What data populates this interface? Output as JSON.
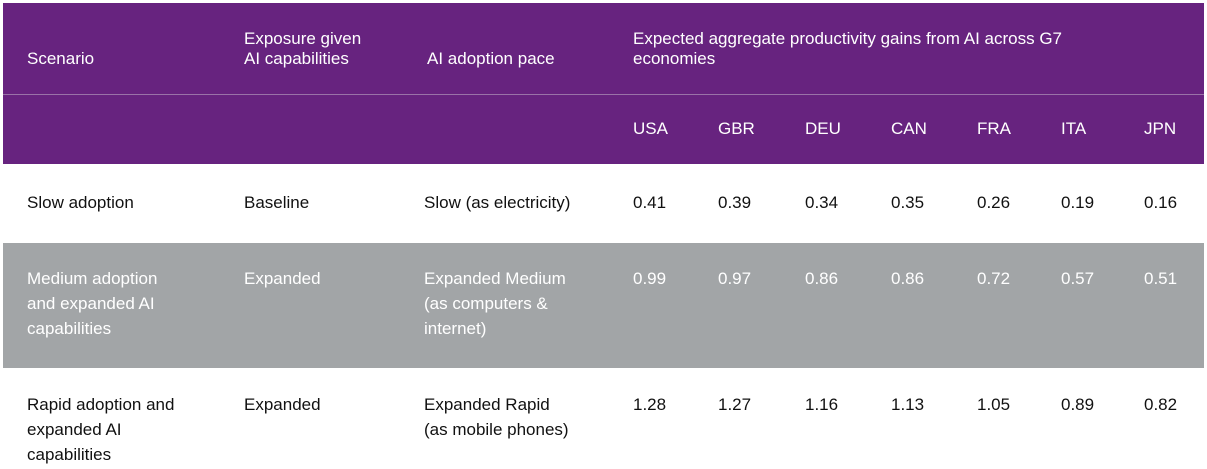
{
  "header": {
    "scenario": "Scenario",
    "exposure_line1": "Exposure given",
    "exposure_line2": "AI capabilities",
    "pace": "AI adoption pace",
    "gains_line1": "Expected aggregate productivity gains from AI across G7",
    "gains_line2": "economies",
    "countries": [
      "USA",
      "GBR",
      "DEU",
      "CAN",
      "FRA",
      "ITA",
      "JPN"
    ]
  },
  "rows": [
    {
      "scenario": [
        "Slow adoption"
      ],
      "exposure": "Baseline",
      "pace": [
        "Slow (as electricity)"
      ],
      "values": [
        "0.41",
        "0.39",
        "0.34",
        "0.35",
        "0.26",
        "0.19",
        "0.16"
      ]
    },
    {
      "scenario": [
        "Medium adoption",
        "and expanded AI",
        "capabilities"
      ],
      "exposure": "Expanded",
      "pace": [
        "Expanded Medium",
        "(as computers &",
        "internet)"
      ],
      "values": [
        "0.99",
        "0.97",
        "0.86",
        "0.86",
        "0.72",
        "0.57",
        "0.51"
      ]
    },
    {
      "scenario": [
        "Rapid adoption and",
        "expanded AI",
        "capabilities"
      ],
      "exposure": "Expanded",
      "pace": [
        "Expanded Rapid",
        "(as mobile phones)"
      ],
      "values": [
        "1.28",
        "1.27",
        "1.16",
        "1.13",
        "1.05",
        "0.89",
        "0.82"
      ]
    }
  ],
  "colors": {
    "header_bg": "#67237f",
    "shaded_row_bg": "#a2a5a7",
    "header_text": "#ffffff",
    "body_text": "#111111"
  }
}
